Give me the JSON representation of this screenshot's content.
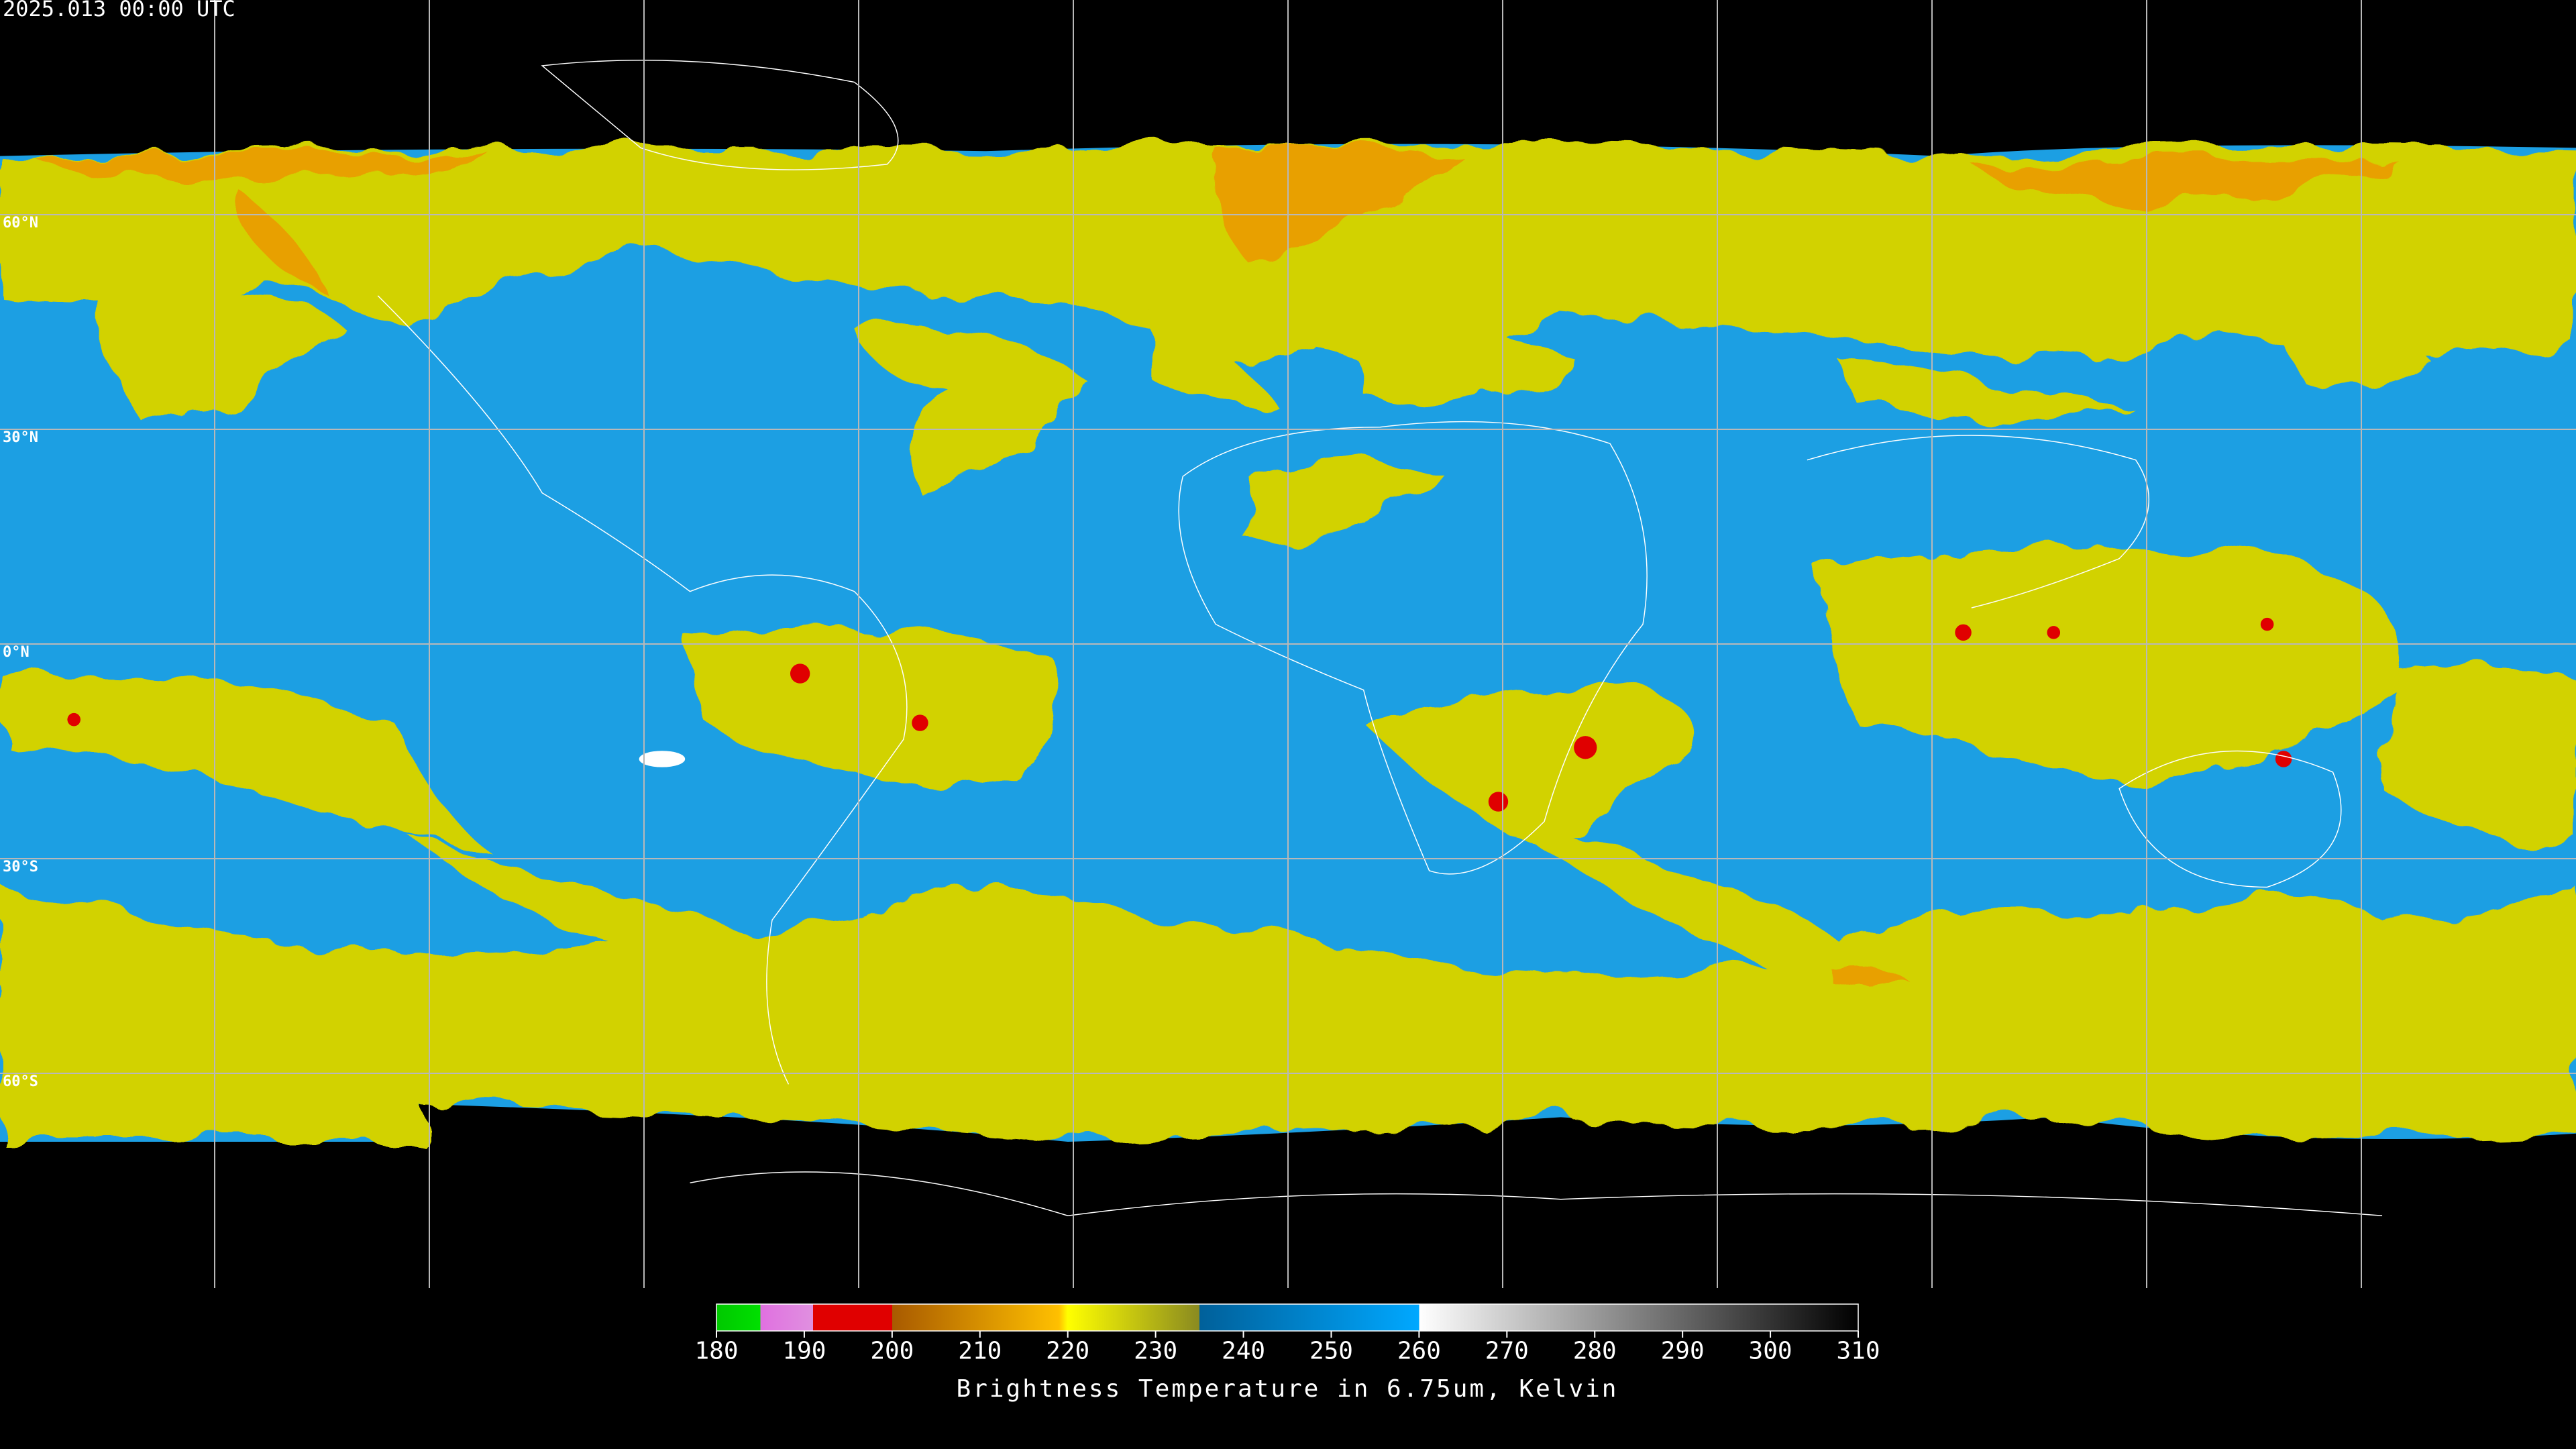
{
  "header": {
    "timestamp": "2025.013 00:00 UTC"
  },
  "map": {
    "latitude_labels": [
      "60°N",
      "30°N",
      "0°N",
      "30°S",
      "60°S"
    ]
  },
  "colorbar": {
    "range": [
      180,
      310
    ],
    "ticks": [
      180,
      190,
      200,
      210,
      220,
      230,
      240,
      250,
      260,
      270,
      280,
      290,
      300,
      310
    ],
    "label": "Brightness Temperature in 6.75um, Kelvin"
  }
}
